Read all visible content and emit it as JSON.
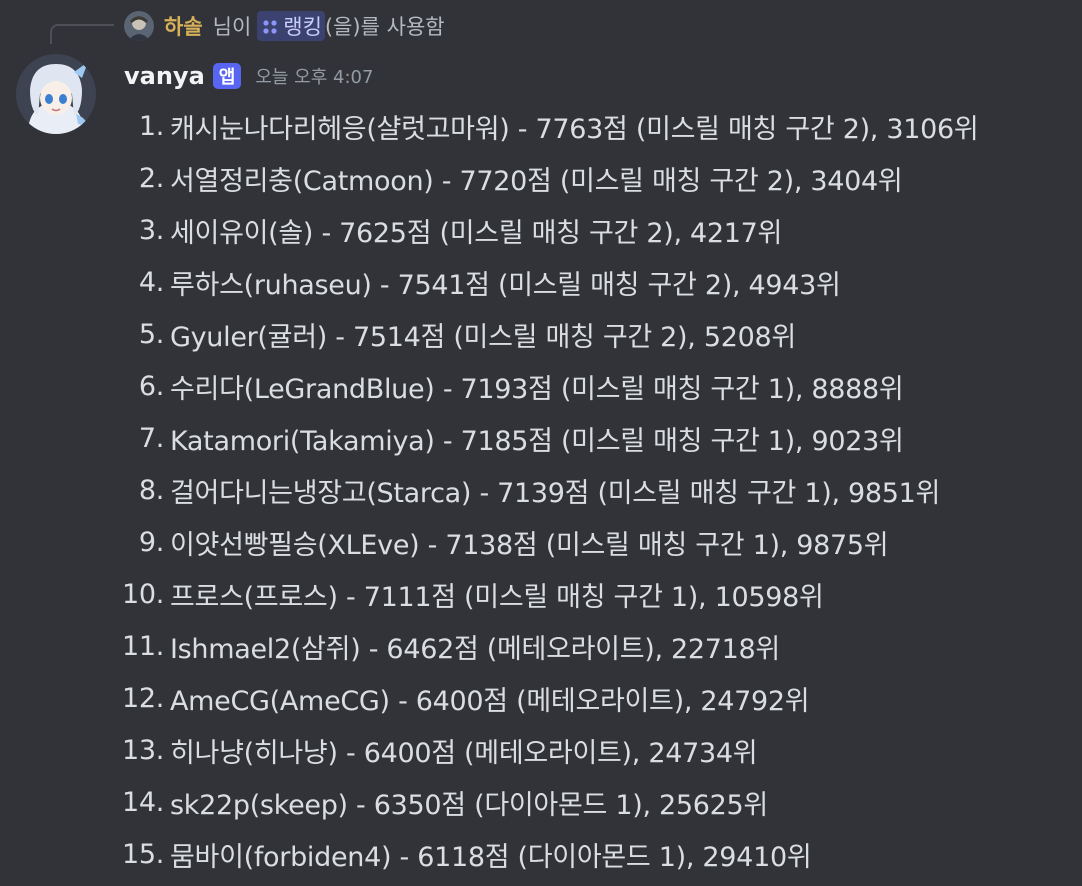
{
  "reply": {
    "user": "하솔",
    "text_mid": "님이",
    "command": "랭킹",
    "text_tail": "(을)를 사용함"
  },
  "message": {
    "username": "vanya",
    "badge": "앱",
    "timestamp": "오늘 오후 4:07"
  },
  "ranking": [
    {
      "num": "1.",
      "text": "캐시눈나다리헤응(샬럿고마워) - 7763점 (미스릴 매칭 구간 2), 3106위"
    },
    {
      "num": "2.",
      "text": "서열정리충(Catmoon) - 7720점 (미스릴 매칭 구간 2), 3404위"
    },
    {
      "num": "3.",
      "text": "세이유이(솔) - 7625점 (미스릴 매칭 구간 2), 4217위"
    },
    {
      "num": "4.",
      "text": "루하스(ruhaseu) - 7541점 (미스릴 매칭 구간 2), 4943위"
    },
    {
      "num": "5.",
      "text": "Gyuler(귤러) - 7514점 (미스릴 매칭 구간 2), 5208위"
    },
    {
      "num": "6.",
      "text": "수리다(LeGrandBlue) - 7193점 (미스릴 매칭 구간 1), 8888위"
    },
    {
      "num": "7.",
      "text": "Katamori(Takamiya) - 7185점 (미스릴 매칭 구간 1), 9023위"
    },
    {
      "num": "8.",
      "text": "걸어다니는냉장고(Starca) - 7139점 (미스릴 매칭 구간 1), 9851위"
    },
    {
      "num": "9.",
      "text": "이얏선빵필승(XLEve) - 7138점 (미스릴 매칭 구간 1), 9875위"
    },
    {
      "num": "10.",
      "text": "프로스(프로스) - 7111점 (미스릴 매칭 구간 1), 10598위"
    },
    {
      "num": "11.",
      "text": "Ishmael2(삼쥐) - 6462점 (메테오라이트), 22718위"
    },
    {
      "num": "12.",
      "text": "AmeCG(AmeCG) - 6400점 (메테오라이트), 24792위"
    },
    {
      "num": "13.",
      "text": "히나냥(히나냥) - 6400점 (메테오라이트), 24734위"
    },
    {
      "num": "14.",
      "text": "sk22p(skeep) - 6350점 (다이아몬드 1), 25625위"
    },
    {
      "num": "15.",
      "text": "뭄바이(forbiden4) - 6118점 (다이아몬드 1), 29410위"
    }
  ],
  "icons": {
    "reply_avatar": "user-avatar-icon",
    "command": "slash-command-icon",
    "bot_avatar": "bot-avatar-icon"
  },
  "colors": {
    "background": "#313338",
    "reply_user": "#d7b15a",
    "command_bg": "#3c4270",
    "badge": "#5865f2"
  }
}
